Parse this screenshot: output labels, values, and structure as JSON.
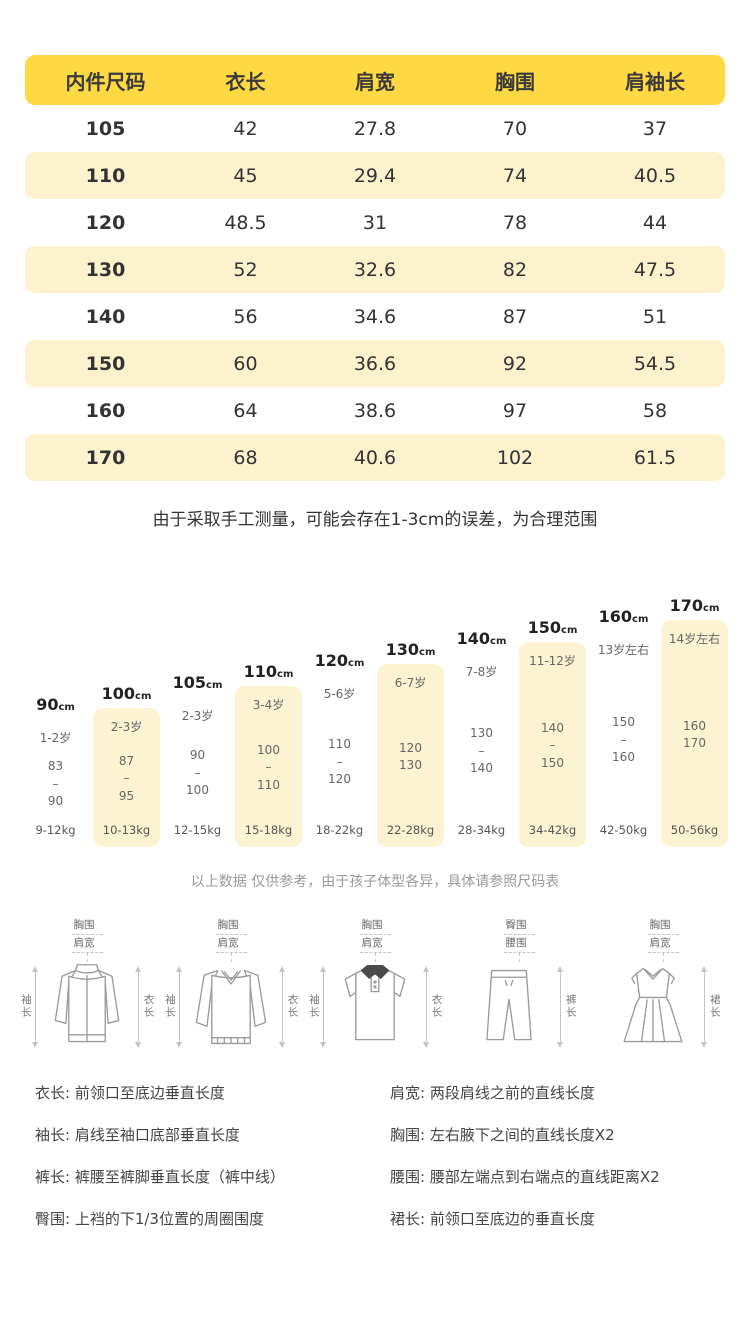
{
  "colors": {
    "header_yellow": "#FFD944",
    "row_yellow": "#FCF2CE",
    "column_yellow": "#FCF3D2",
    "text_dark": "#333333"
  },
  "size_table": {
    "headers": [
      "内件尺码",
      "衣长",
      "肩宽",
      "胸围",
      "肩袖长"
    ],
    "rows": [
      [
        "105",
        "42",
        "27.8",
        "70",
        "37"
      ],
      [
        "110",
        "45",
        "29.4",
        "74",
        "40.5"
      ],
      [
        "120",
        "48.5",
        "31",
        "78",
        "44"
      ],
      [
        "130",
        "52",
        "32.6",
        "82",
        "47.5"
      ],
      [
        "140",
        "56",
        "34.6",
        "87",
        "51"
      ],
      [
        "150",
        "60",
        "36.6",
        "92",
        "54.5"
      ],
      [
        "160",
        "64",
        "38.6",
        "97",
        "58"
      ],
      [
        "170",
        "68",
        "40.6",
        "102",
        "61.5"
      ]
    ]
  },
  "notes": {
    "measure_note": "由于采取手工测量，可能会存在1-3cm的误差，为合理范围",
    "reference_note": "以上数据 仅供参考，由于孩子体型各异，具体请参照尺码表"
  },
  "height_columns": [
    {
      "size": "90",
      "unit": "cm",
      "age": "1-2岁",
      "range": [
        "83",
        "–",
        "90"
      ],
      "weight": "9-12kg",
      "highlight": false
    },
    {
      "size": "100",
      "unit": "cm",
      "age": "2-3岁",
      "range": [
        "87",
        "–",
        "95"
      ],
      "weight": "10-13kg",
      "highlight": true
    },
    {
      "size": "105",
      "unit": "cm",
      "age": "2-3岁",
      "range": [
        "90",
        "–",
        "100"
      ],
      "weight": "12-15kg",
      "highlight": false
    },
    {
      "size": "110",
      "unit": "cm",
      "age": "3-4岁",
      "range": [
        "100",
        "–",
        "110"
      ],
      "weight": "15-18kg",
      "highlight": true
    },
    {
      "size": "120",
      "unit": "cm",
      "age": "5-6岁",
      "range": [
        "110",
        "–",
        "120"
      ],
      "weight": "18-22kg",
      "highlight": false
    },
    {
      "size": "130",
      "unit": "cm",
      "age": "6-7岁",
      "range": [
        "120",
        "130"
      ],
      "weight": "22-28kg",
      "highlight": true
    },
    {
      "size": "140",
      "unit": "cm",
      "age": "7-8岁",
      "range": [
        "130",
        "–",
        "140"
      ],
      "weight": "28-34kg",
      "highlight": false
    },
    {
      "size": "150",
      "unit": "cm",
      "age": "11-12岁",
      "range": [
        "140",
        "–",
        "150"
      ],
      "weight": "34-42kg",
      "highlight": true
    },
    {
      "size": "160",
      "unit": "cm",
      "age": "13岁左右",
      "range": [
        "150",
        "–",
        "160"
      ],
      "weight": "42-50kg",
      "highlight": false
    },
    {
      "size": "170",
      "unit": "cm",
      "age": "14岁左右",
      "range": [
        "160",
        "170"
      ],
      "weight": "50-56kg",
      "highlight": true
    }
  ],
  "diagrams": [
    {
      "id": "jacket",
      "top1": "胸围",
      "top2": "肩宽",
      "left": "袖长",
      "right": "衣长"
    },
    {
      "id": "sweater",
      "top1": "胸围",
      "top2": "肩宽",
      "left": "袖长",
      "right": "衣长"
    },
    {
      "id": "polo",
      "top1": "胸围",
      "top2": "肩宽",
      "left": "袖长",
      "right": "衣长"
    },
    {
      "id": "pants",
      "top1": "臀围",
      "top2": "腰围",
      "right": "裤长"
    },
    {
      "id": "dress",
      "top1": "胸围",
      "top2": "肩宽",
      "right": "裙长"
    }
  ],
  "definitions": {
    "left": [
      "衣长: 前领口至底边垂直长度",
      "袖长: 肩线至袖口底部垂直长度",
      "裤长: 裤腰至裤脚垂直长度（裤中线）",
      "臀围: 上裆的下1/3位置的周圈围度"
    ],
    "right": [
      "肩宽: 两段肩线之前的直线长度",
      "胸围: 左右腋下之间的直线长度X2",
      "腰围: 腰部左端点到右端点的直线距离X2",
      "裙长: 前领口至底边的垂直长度"
    ]
  }
}
